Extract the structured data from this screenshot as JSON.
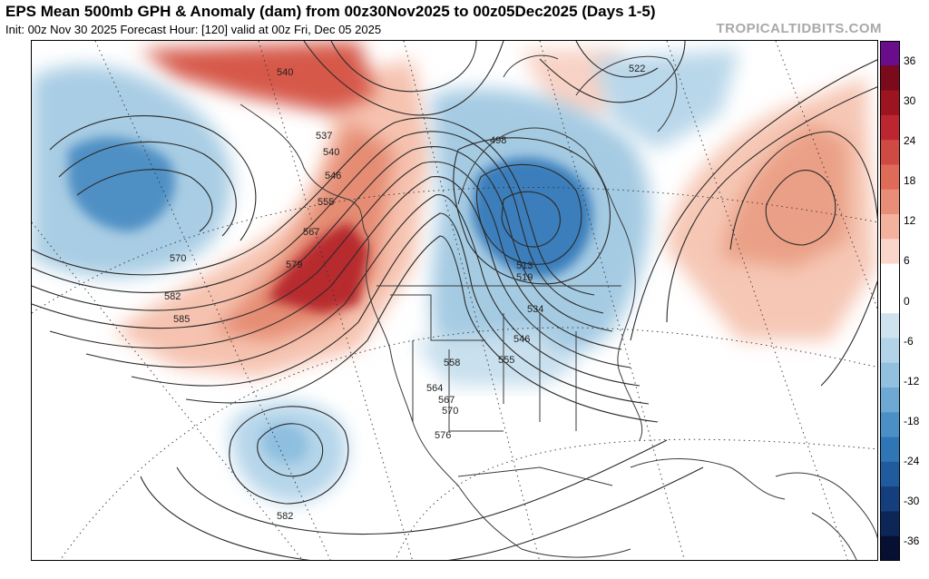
{
  "header": {
    "title": "EPS Mean 500mb GPH & Anomaly (dam) from 00z30Nov2025 to 00z05Dec2025 (Days 1-5)",
    "subtitle": "Init: 00z Nov 30 2025   Forecast Hour: [120]   valid at 00z Fri, Dec 05 2025",
    "watermark": "TROPICALTIDBITS.COM"
  },
  "colorbar": {
    "ticks": [
      "36",
      "30",
      "24",
      "18",
      "12",
      "6",
      "0",
      "-6",
      "-12",
      "-18",
      "-24",
      "-30",
      "-36"
    ],
    "colors": [
      "#6a0d8a",
      "#7a0a1c",
      "#9c1420",
      "#bb2630",
      "#cf4a43",
      "#dd6b58",
      "#e88d78",
      "#f2b29e",
      "#f9d6c9",
      "#ffffff",
      "#ffffff",
      "#cfe3ef",
      "#b2d3e8",
      "#92c1df",
      "#6ea9d3",
      "#4a90c6",
      "#2f76b6",
      "#1f5b9e",
      "#153f7c",
      "#0c2657",
      "#070f33"
    ]
  },
  "contour_labels": [
    "540",
    "537",
    "540",
    "546",
    "555",
    "567",
    "579",
    "570",
    "582",
    "585",
    "522",
    "498",
    "513",
    "519",
    "534",
    "546",
    "555",
    "558",
    "564",
    "567",
    "570",
    "576",
    "582"
  ],
  "colors": {
    "warm": "#e07a5f",
    "cold": "#3d7fbf",
    "contour": "#222222",
    "land": "#333333"
  }
}
